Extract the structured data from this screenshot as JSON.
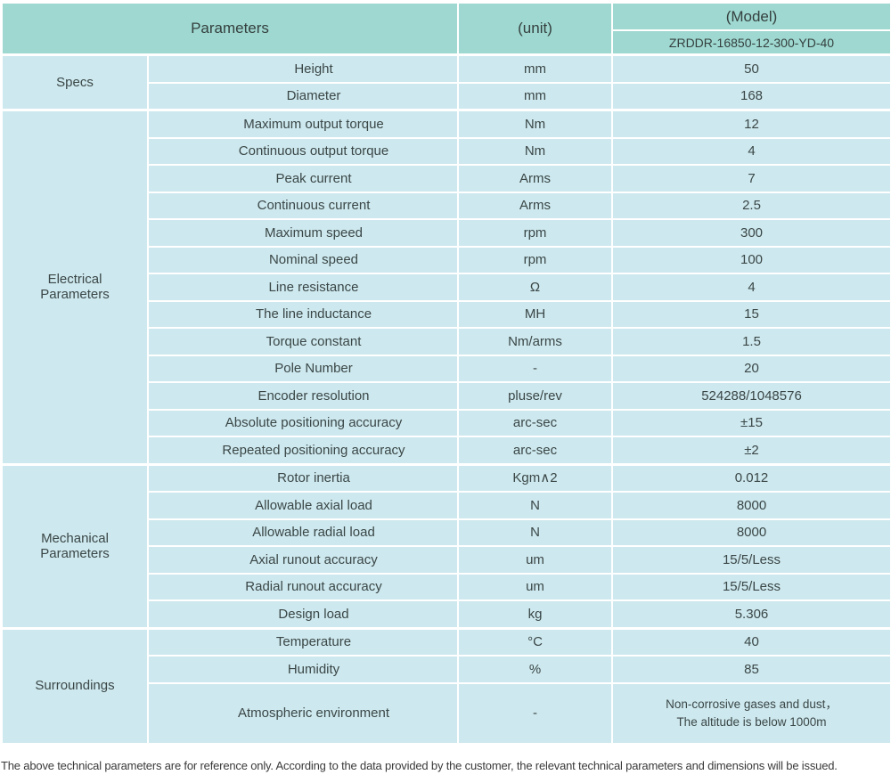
{
  "table": {
    "header": {
      "parameters_label": "Parameters",
      "unit_label": "(unit)",
      "model_label": "(Model)",
      "model_value": "ZRDDR-16850-12-300-YD-40"
    },
    "sections": [
      {
        "category": "Specs",
        "rows": [
          {
            "param": "Height",
            "unit": "mm",
            "value": "50"
          },
          {
            "param": "Diameter",
            "unit": "mm",
            "value": "168"
          }
        ]
      },
      {
        "category": "Electrical\nParameters",
        "rows": [
          {
            "param": "Maximum output torque",
            "unit": "Nm",
            "value": "12"
          },
          {
            "param": "Continuous output torque",
            "unit": "Nm",
            "value": "4"
          },
          {
            "param": "Peak current",
            "unit": "Arms",
            "value": "7"
          },
          {
            "param": "Continuous current",
            "unit": "Arms",
            "value": "2.5"
          },
          {
            "param": "Maximum speed",
            "unit": "rpm",
            "value": "300"
          },
          {
            "param": "Nominal speed",
            "unit": "rpm",
            "value": "100"
          },
          {
            "param": "Line resistance",
            "unit": "Ω",
            "value": "4"
          },
          {
            "param": "The line inductance",
            "unit": "MH",
            "value": "15"
          },
          {
            "param": "Torque constant",
            "unit": "Nm/arms",
            "value": "1.5"
          },
          {
            "param": "Pole Number",
            "unit": "-",
            "value": "20"
          },
          {
            "param": "Encoder resolution",
            "unit": "pluse/rev",
            "value": "524288/1048576"
          },
          {
            "param": "Absolute positioning accuracy",
            "unit": "arc-sec",
            "value": "±15"
          },
          {
            "param": "Repeated positioning accuracy",
            "unit": "arc-sec",
            "value": "±2"
          }
        ]
      },
      {
        "category": "Mechanical\nParameters",
        "rows": [
          {
            "param": "Rotor inertia",
            "unit": "Kgm∧2",
            "value": "0.012"
          },
          {
            "param": "Allowable axial load",
            "unit": "N",
            "value": "8000"
          },
          {
            "param": "Allowable radial load",
            "unit": "N",
            "value": "8000"
          },
          {
            "param": "Axial runout accuracy",
            "unit": "um",
            "value": "15/5/Less"
          },
          {
            "param": "Radial runout accuracy",
            "unit": "um",
            "value": "15/5/Less"
          },
          {
            "param": "Design load",
            "unit": "kg",
            "value": "5.306"
          }
        ]
      },
      {
        "category": "Surroundings",
        "rows": [
          {
            "param": "Temperature",
            "unit": "°C",
            "value": "40"
          },
          {
            "param": "Humidity",
            "unit": "%",
            "value": "85"
          },
          {
            "param": "Atmospheric environment",
            "unit": "-",
            "value": "Non-corrosive gases and dust，\nThe altitude is below 1000m",
            "tall": true
          }
        ]
      }
    ]
  },
  "footer": {
    "note": "The above technical parameters are for reference only. According to the data provided by the customer, the relevant technical parameters and dimensions will be issued."
  },
  "colors": {
    "header_bg": "#9ed8d0",
    "row_bg": "#cde8ee",
    "grid_line": "#ffffff",
    "text": "#3b4747"
  }
}
